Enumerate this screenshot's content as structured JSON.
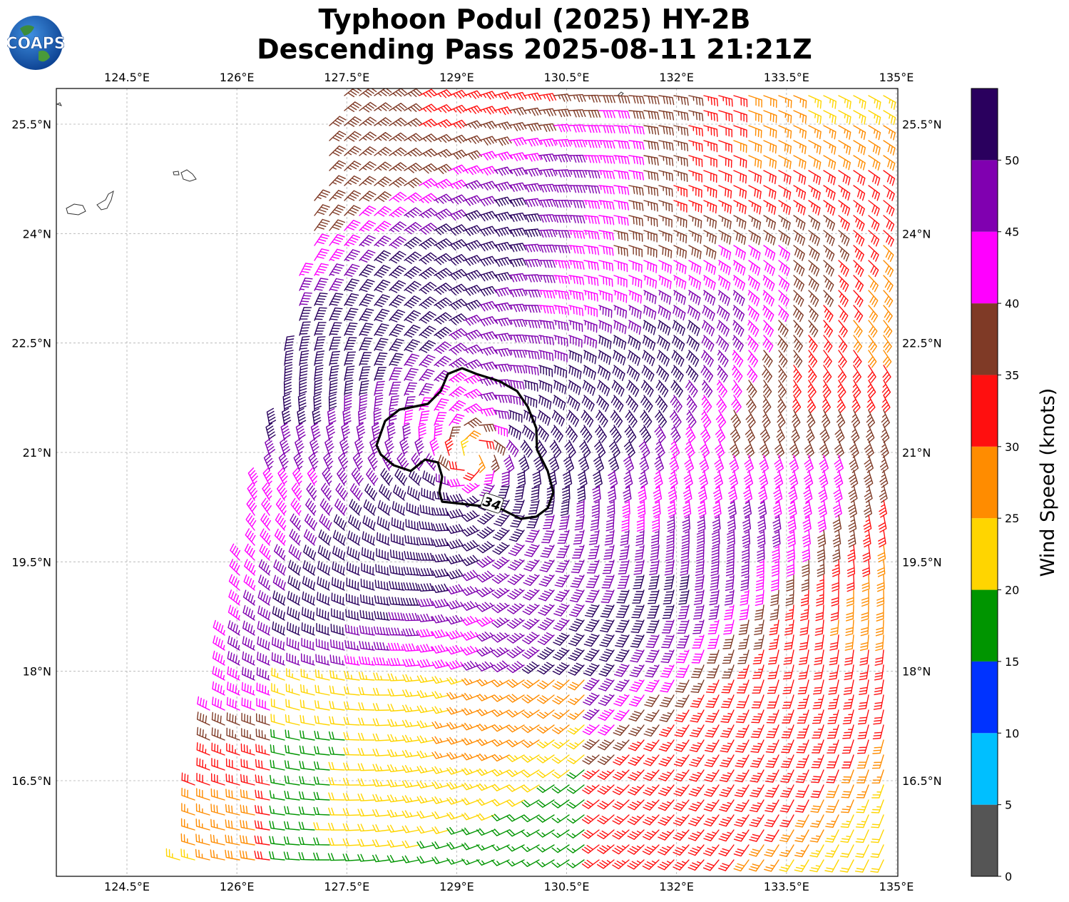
{
  "title": {
    "line1": "Typhoon Podul (2025) HY-2B",
    "line2": "Descending Pass 2025-08-11 21:21Z"
  },
  "logo": {
    "text": "COAPS",
    "icon": "globe-logo"
  },
  "map": {
    "lon_ticks": [
      "124.5°E",
      "126°E",
      "127.5°E",
      "129°E",
      "130.5°E",
      "132°E",
      "133.5°E",
      "135°E"
    ],
    "lat_ticks": [
      "25.5°N",
      "24°N",
      "22.5°N",
      "21°N",
      "19.5°N",
      "18°N",
      "16.5°N"
    ],
    "lon_values": [
      124.5,
      126,
      127.5,
      129,
      130.5,
      132,
      133.5,
      135
    ],
    "lat_values": [
      25.5,
      24,
      22.5,
      21,
      19.5,
      18,
      16.5
    ],
    "extent": {
      "lon": [
        123.5,
        135.05
      ],
      "lat": [
        15.2,
        26.0
      ]
    },
    "storm_center": {
      "lon": 129.2,
      "lat": 20.95
    },
    "contour_label": "34",
    "grid": true
  },
  "colorbar": {
    "label": "Wind Speed (knots)",
    "ticks": [
      "0",
      "5",
      "10",
      "15",
      "20",
      "25",
      "30",
      "35",
      "40",
      "45",
      "50"
    ],
    "bins": [
      {
        "min": 0,
        "max": 5,
        "color": "#555555"
      },
      {
        "min": 5,
        "max": 10,
        "color": "#00bfff"
      },
      {
        "min": 10,
        "max": 15,
        "color": "#0033ff"
      },
      {
        "min": 15,
        "max": 20,
        "color": "#009500"
      },
      {
        "min": 20,
        "max": 25,
        "color": "#ffd500"
      },
      {
        "min": 25,
        "max": 30,
        "color": "#ff8c00"
      },
      {
        "min": 30,
        "max": 35,
        "color": "#ff0f0f"
      },
      {
        "min": 35,
        "max": 40,
        "color": "#7f3a26"
      },
      {
        "min": 40,
        "max": 45,
        "color": "#ff00ff"
      },
      {
        "min": 45,
        "max": 50,
        "color": "#8000b0"
      },
      {
        "min": 50,
        "max": 55,
        "color": "#2a005e"
      }
    ]
  }
}
